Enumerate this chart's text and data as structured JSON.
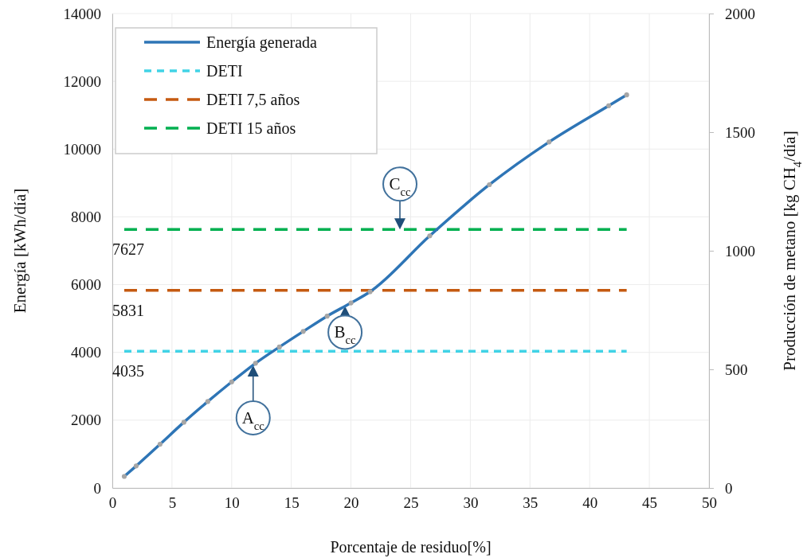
{
  "chart_data": {
    "type": "line",
    "xlabel": "Porcentaje de residuo[%]",
    "ylabel": "Energía [kWh/día]",
    "y2label": "Producción de metano [kg CH$_{4}$/día]",
    "xlim": [
      0,
      50
    ],
    "xticks": [
      0,
      5,
      10,
      15,
      20,
      25,
      30,
      35,
      40,
      45,
      50
    ],
    "ylim": [
      0,
      14000
    ],
    "yticks": [
      0,
      2000,
      4000,
      6000,
      8000,
      10000,
      12000,
      14000
    ],
    "y2lim": [
      0,
      2000
    ],
    "y2ticks": [
      0,
      500,
      1000,
      1500,
      2000
    ],
    "grid": true,
    "legend": "top left",
    "series": [
      {
        "name": "Energía generada",
        "color": "#2e75b6",
        "line_style": "solid",
        "marker": "circle",
        "x": [
          1,
          2,
          4,
          6,
          8,
          10,
          12,
          14,
          16,
          18,
          20,
          21.6,
          26.6,
          31.6,
          36.6,
          41.6,
          43.1
        ],
        "values": [
          340,
          650,
          1290,
          1940,
          2550,
          3130,
          3680,
          4160,
          4620,
          5070,
          5460,
          5790,
          7440,
          8950,
          10210,
          11280,
          11600
        ]
      },
      {
        "name": "DETI",
        "color": "#41d3e6",
        "line_style": "dotted",
        "marker": "none",
        "x": [
          1,
          43.1
        ],
        "values": [
          4035,
          4035
        ]
      },
      {
        "name": "DETI 7,5 años",
        "color": "#c55a11",
        "line_style": "dashed",
        "marker": "none",
        "x": [
          1,
          43.1
        ],
        "values": [
          5831,
          5831
        ]
      },
      {
        "name": "DETI 15 años",
        "color": "#00b050",
        "line_style": "dashed",
        "marker": "none",
        "x": [
          1,
          43.1
        ],
        "values": [
          7627,
          7627
        ]
      }
    ],
    "annotations": [
      {
        "text": "4035",
        "x": 1,
        "y": 4035
      },
      {
        "text": "5831",
        "x": 1,
        "y": 5831
      },
      {
        "text": "7627",
        "x": 1,
        "y": 7627
      },
      {
        "text": "A$_{cc}$",
        "x": 11.8,
        "y": 3620
      },
      {
        "text": "B$_{cc}$",
        "x": 19.5,
        "y": 5370
      },
      {
        "text": "C$_{cc}$",
        "x": 24.1,
        "y": 7627
      }
    ]
  }
}
